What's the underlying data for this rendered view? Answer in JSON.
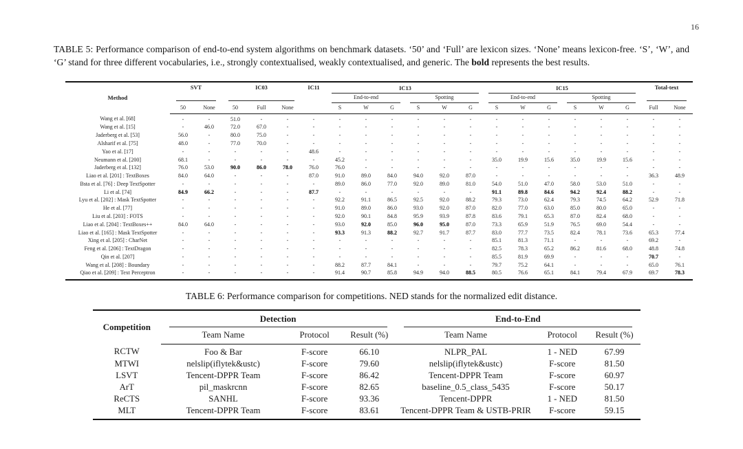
{
  "page": {
    "number": "16"
  },
  "table5": {
    "caption": {
      "before_bold": "TABLE 5: Performance comparison of end-to-end system algorithms on benchmark datasets. ‘50’ and ‘Full’ are lexicon sizes. ‘None’ means lexicon-free. ‘S’, ‘W’, and ‘G’ stand for three different vocabularies, i.e., strongly contextualised, weakly contextualised, and generic. The ",
      "bold_word": "bold",
      "after_bold": " represents the best results."
    },
    "header": {
      "method": "Method",
      "groups": [
        {
          "label": "SVT",
          "cols": [
            "50",
            "None"
          ],
          "rule": true
        },
        {
          "label": "IC03",
          "cols": [
            "50",
            "Full",
            "None"
          ],
          "rule": true
        },
        {
          "label": "IC11",
          "cols": [
            ""
          ],
          "rule": false
        },
        {
          "label": "IC13",
          "subgroups": [
            {
              "label": "End-to-end",
              "cols": [
                "S",
                "W",
                "G"
              ]
            },
            {
              "label": "Spotting",
              "cols": [
                "S",
                "W",
                "G"
              ]
            }
          ]
        },
        {
          "label": "IC15",
          "subgroups": [
            {
              "label": "End-to-end",
              "cols": [
                "S",
                "W",
                "G"
              ]
            },
            {
              "label": "Spotting",
              "cols": [
                "S",
                "W",
                "G"
              ]
            }
          ]
        },
        {
          "label": "Total-text",
          "cols": [
            "Full",
            "None"
          ],
          "rule": true
        }
      ]
    },
    "rows": [
      {
        "method": "Wang et al. [68]",
        "values": [
          "-",
          "-",
          "51.0",
          "-",
          "-",
          "-",
          "-",
          "-",
          "-",
          "-",
          "-",
          "-",
          "-",
          "-",
          "-",
          "-",
          "-",
          "-",
          "-",
          "-"
        ],
        "bold": []
      },
      {
        "method": "Wang et al. [15]",
        "values": [
          "-",
          "46.0",
          "72.0",
          "67.0",
          "-",
          "-",
          "-",
          "-",
          "-",
          "-",
          "-",
          "-",
          "-",
          "-",
          "-",
          "-",
          "-",
          "-",
          "-",
          "-"
        ],
        "bold": []
      },
      {
        "method": "Jaderberg et al. [53]",
        "values": [
          "56.0",
          "-",
          "80.0",
          "75.0",
          "-",
          "-",
          "-",
          "-",
          "-",
          "-",
          "-",
          "-",
          "-",
          "-",
          "-",
          "-",
          "-",
          "-",
          "-",
          "-"
        ],
        "bold": []
      },
      {
        "method": "Alsharif et al. [75]",
        "values": [
          "48.0",
          "-",
          "77.0",
          "70.0",
          "-",
          "-",
          "-",
          "-",
          "-",
          "-",
          "-",
          "-",
          "-",
          "-",
          "-",
          "-",
          "-",
          "-",
          "-",
          "-"
        ],
        "bold": []
      },
      {
        "method": "Yao et al. [17]",
        "values": [
          "-",
          "-",
          "-",
          "-",
          "-",
          "48.6",
          "-",
          "-",
          "-",
          "-",
          "-",
          "-",
          "-",
          "-",
          "-",
          "-",
          "-",
          "-",
          "-",
          "-"
        ],
        "bold": []
      },
      {
        "method": "Neumann et al. [200]",
        "values": [
          "68.1",
          "-",
          "-",
          "-",
          "-",
          "-",
          "45.2",
          "-",
          "-",
          "-",
          "-",
          "-",
          "35.0",
          "19.9",
          "15.6",
          "35.0",
          "19.9",
          "15.6",
          "-",
          "-"
        ],
        "bold": []
      },
      {
        "method": "Jaderberg et al. [132]",
        "values": [
          "76.0",
          "53.0",
          "90.0",
          "86.0",
          "78.0",
          "76.0",
          "76.0",
          "-",
          "-",
          "-",
          "-",
          "-",
          "-",
          "-",
          "-",
          "-",
          "-",
          "-",
          "-",
          "-"
        ],
        "bold": [
          2,
          3,
          4
        ]
      },
      {
        "method": "Liao et al. [201] : TextBoxes",
        "values": [
          "84.0",
          "64.0",
          "-",
          "-",
          "-",
          "87.0",
          "91.0",
          "89.0",
          "84.0",
          "94.0",
          "92.0",
          "87.0",
          "-",
          "-",
          "-",
          "-",
          "-",
          "-",
          "36.3",
          "48.9"
        ],
        "bold": []
      },
      {
        "method": "Bsta et al. [76] : Deep TextSpotter",
        "values": [
          "-",
          "-",
          "-",
          "-",
          "-",
          "-",
          "89.0",
          "86.0",
          "77.0",
          "92.0",
          "89.0",
          "81.0",
          "54.0",
          "51.0",
          "47.0",
          "58.0",
          "53.0",
          "51.0",
          "-",
          "-"
        ],
        "bold": []
      },
      {
        "method": "Li et al. [74]",
        "values": [
          "84.9",
          "66.2",
          "-",
          "-",
          "-",
          "87.7",
          "-",
          "-",
          "-",
          "-",
          "-",
          "-",
          "91.1",
          "89.8",
          "84.6",
          "94.2",
          "92.4",
          "88.2",
          "-",
          "-"
        ],
        "bold": [
          0,
          1,
          5,
          12,
          13,
          14,
          15,
          16,
          17
        ]
      },
      {
        "method": "Lyu et al. [202] : Mask TextSpotter",
        "values": [
          "-",
          "-",
          "-",
          "-",
          "-",
          "-",
          "92.2",
          "91.1",
          "86.5",
          "92.5",
          "92.0",
          "88.2",
          "79.3",
          "73.0",
          "62.4",
          "79.3",
          "74.5",
          "64.2",
          "52.9",
          "71.8"
        ],
        "bold": []
      },
      {
        "method": "He et al. [77]",
        "values": [
          "-",
          "-",
          "-",
          "-",
          "-",
          "-",
          "91.0",
          "89.0",
          "86.0",
          "93.0",
          "92.0",
          "87.0",
          "82.0",
          "77.0",
          "63.0",
          "85.0",
          "80.0",
          "65.0",
          "-",
          "-"
        ],
        "bold": []
      },
      {
        "method": "Liu et al. [203] : FOTS",
        "values": [
          "-",
          "-",
          "-",
          "-",
          "-",
          "-",
          "92.0",
          "90.1",
          "84.8",
          "95.9",
          "93.9",
          "87.8",
          "83.6",
          "79.1",
          "65.3",
          "87.0",
          "82.4",
          "68.0",
          "-",
          "-"
        ],
        "bold": []
      },
      {
        "method": "Liao et al. [204] : TextBoxes++",
        "values": [
          "84.0",
          "64.0",
          "-",
          "-",
          "-",
          "-",
          "93.0",
          "92.0",
          "85.0",
          "96.0",
          "95.0",
          "87.0",
          "73.3",
          "65.9",
          "51.9",
          "76.5",
          "69.0",
          "54.4",
          "-",
          "-"
        ],
        "bold": [
          7,
          9,
          10
        ]
      },
      {
        "method": "Liao et al. [165] : Mask TextSpotter",
        "values": [
          "-",
          "-",
          "-",
          "-",
          "-",
          "-",
          "93.3",
          "91.3",
          "88.2",
          "92.7",
          "91.7",
          "87.7",
          "83.0",
          "77.7",
          "73.5",
          "82.4",
          "78.1",
          "73.6",
          "65.3",
          "77.4"
        ],
        "bold": [
          6,
          8
        ]
      },
      {
        "method": "Xing et al. [205] : CharNet",
        "values": [
          "-",
          "-",
          "-",
          "-",
          "-",
          "-",
          "-",
          "-",
          "-",
          "-",
          "-",
          "-",
          "85.1",
          "81.3",
          "71.1",
          "-",
          "-",
          "-",
          "69.2",
          "-"
        ],
        "bold": []
      },
      {
        "method": "Feng et al. [206] : TextDragon",
        "values": [
          "-",
          "-",
          "-",
          "-",
          "-",
          "-",
          "-",
          "-",
          "-",
          "-",
          "-",
          "-",
          "82.5",
          "78.3",
          "65.2",
          "86.2",
          "81.6",
          "68.0",
          "48.8",
          "74.8"
        ],
        "bold": []
      },
      {
        "method": "Qin et al. [207]",
        "values": [
          "-",
          "-",
          "-",
          "-",
          "-",
          "-",
          "-",
          "-",
          "-",
          "-",
          "-",
          "-",
          "85.5",
          "81.9",
          "69.9",
          "-",
          "-",
          "-",
          "70.7",
          "-"
        ],
        "bold": [
          18
        ]
      },
      {
        "method": "Wang et al. [208] : Boundary",
        "values": [
          "-",
          "-",
          "-",
          "-",
          "-",
          "-",
          "88.2",
          "87.7",
          "84.1",
          "-",
          "-",
          "-",
          "79.7",
          "75.2",
          "64.1",
          "-",
          "-",
          "-",
          "65.0",
          "76.1"
        ],
        "bold": []
      },
      {
        "method": "Qiao et al. [209] : Text Perceptron",
        "values": [
          "-",
          "-",
          "-",
          "-",
          "-",
          "-",
          "91.4",
          "90.7",
          "85.8",
          "94.9",
          "94.0",
          "88.5",
          "80.5",
          "76.6",
          "65.1",
          "84.1",
          "79.4",
          "67.9",
          "69.7",
          "78.3"
        ],
        "bold": [
          11,
          19
        ]
      }
    ]
  },
  "table6": {
    "caption": "TABLE 6: Performance comparison for competitions. NED stands for the normalized edit distance.",
    "headers": {
      "competition": "Competition",
      "detection": "Detection",
      "end_to_end": "End-to-End",
      "team": "Team Name",
      "protocol": "Protocol",
      "result": "Result (%)"
    },
    "rows": [
      {
        "competition": "RCTW",
        "det_team": "Foo & Bar",
        "det_protocol": "F-score",
        "det_result": "66.10",
        "e2e_team": "NLPR_PAL",
        "e2e_protocol": "1 - NED",
        "e2e_result": "67.99"
      },
      {
        "competition": "MTWI",
        "det_team": "nelslip(iflytek&ustc)",
        "det_protocol": "F-score",
        "det_result": "79.60",
        "e2e_team": "nelslip(iflytek&ustc)",
        "e2e_protocol": "F-score",
        "e2e_result": "81.50"
      },
      {
        "competition": "LSVT",
        "det_team": "Tencent-DPPR Team",
        "det_protocol": "F-score",
        "det_result": "86.42",
        "e2e_team": "Tencent-DPPR Team",
        "e2e_protocol": "F-score",
        "e2e_result": "60.97"
      },
      {
        "competition": "ArT",
        "det_team": "pil_maskrcnn",
        "det_protocol": "F-score",
        "det_result": "82.65",
        "e2e_team": "baseline_0.5_class_5435",
        "e2e_protocol": "F-score",
        "e2e_result": "50.17"
      },
      {
        "competition": "ReCTS",
        "det_team": "SANHL",
        "det_protocol": "F-score",
        "det_result": "93.36",
        "e2e_team": "Tencent-DPPR",
        "e2e_protocol": "1 - NED",
        "e2e_result": "81.50"
      },
      {
        "competition": "MLT",
        "det_team": "Tencent-DPPR Team",
        "det_protocol": "F-score",
        "det_result": "83.61",
        "e2e_team": "Tencent-DPPR Team & USTB-PRIR",
        "e2e_protocol": "F-score",
        "e2e_result": "59.15"
      }
    ]
  }
}
